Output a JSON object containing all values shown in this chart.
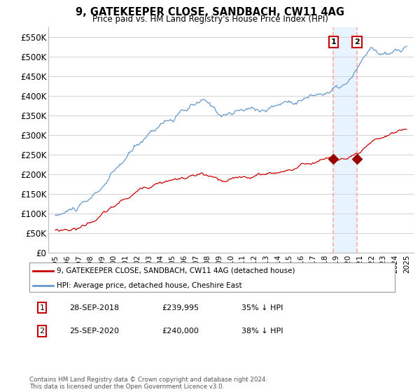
{
  "title": "9, GATEKEEPER CLOSE, SANDBACH, CW11 4AG",
  "subtitle": "Price paid vs. HM Land Registry's House Price Index (HPI)",
  "ylabel_ticks": [
    "£0",
    "£50K",
    "£100K",
    "£150K",
    "£200K",
    "£250K",
    "£300K",
    "£350K",
    "£400K",
    "£450K",
    "£500K",
    "£550K"
  ],
  "ytick_values": [
    0,
    50000,
    100000,
    150000,
    200000,
    250000,
    300000,
    350000,
    400000,
    450000,
    500000,
    550000
  ],
  "ylim": [
    0,
    575000
  ],
  "legend_line1": "9, GATEKEEPER CLOSE, SANDBACH, CW11 4AG (detached house)",
  "legend_line2": "HPI: Average price, detached house, Cheshire East",
  "sale1_date": "28-SEP-2018",
  "sale1_price": "£239,995",
  "sale1_note": "35% ↓ HPI",
  "sale2_date": "25-SEP-2020",
  "sale2_price": "£240,000",
  "sale2_note": "38% ↓ HPI",
  "copyright": "Contains HM Land Registry data © Crown copyright and database right 2024.\nThis data is licensed under the Open Government Licence v3.0.",
  "hpi_color": "#6699cc",
  "price_color": "#cc0000",
  "marker_color": "#990000",
  "vline_color": "#ffaaaa",
  "shade_color": "#ddeeff",
  "background_color": "#ffffff",
  "grid_color": "#cccccc",
  "sale1_year": 2018.75,
  "sale1_val": 239995,
  "sale2_year": 2020.75,
  "sale2_val": 240000
}
